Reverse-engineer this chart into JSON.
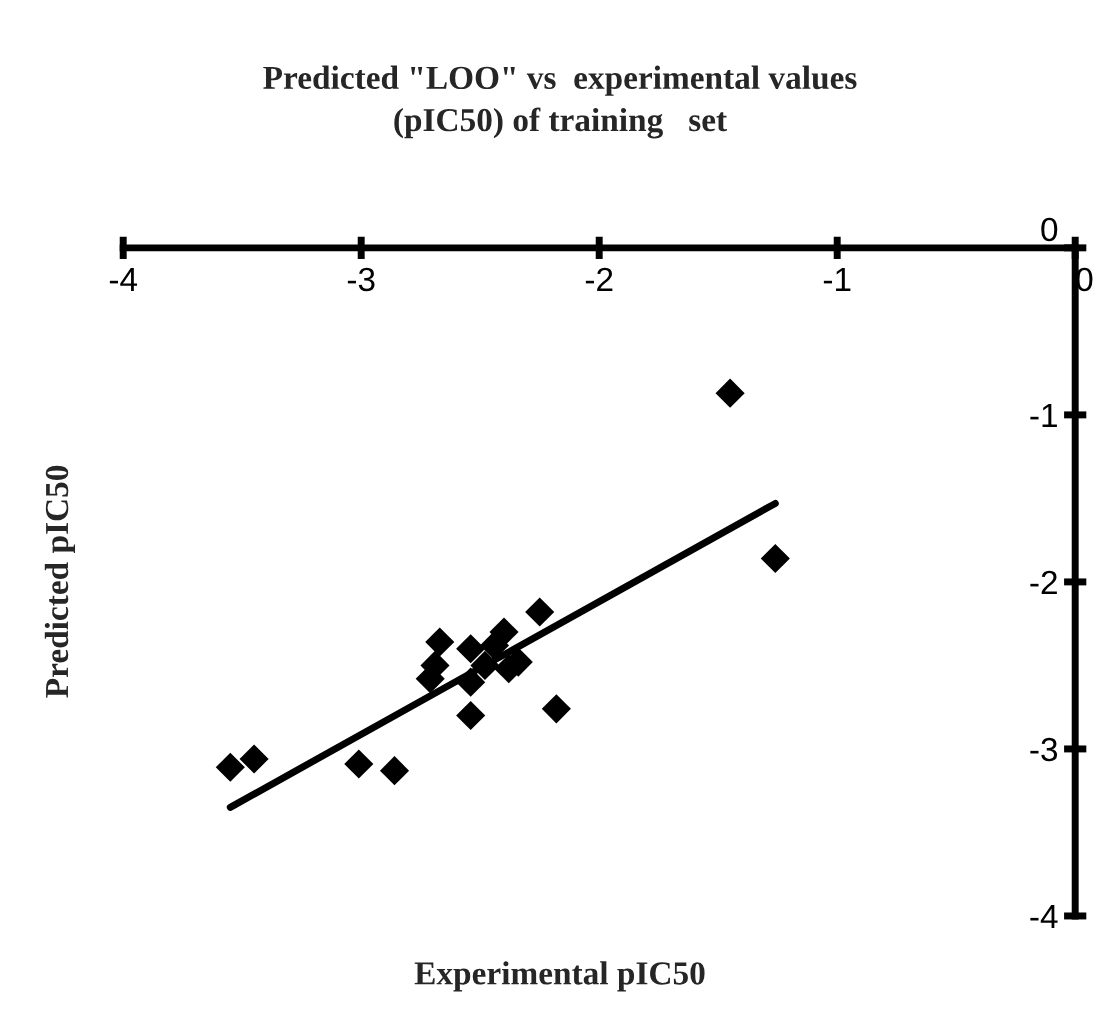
{
  "chart_data": {
    "type": "scatter",
    "title": "Predicted \"LOO\" vs  experimental values\n(pIC50) of training   set",
    "xlabel": "Experimental pIC50",
    "ylabel": "Predicted pIC50",
    "xlim": [
      -4,
      0
    ],
    "ylim": [
      -4,
      0
    ],
    "xticks": [
      -4,
      -3,
      -2,
      -1,
      0
    ],
    "yticks": [
      -4,
      -3,
      -2,
      -1,
      0
    ],
    "grid": false,
    "legend": false,
    "marker": "diamond",
    "series": [
      {
        "type": "scatter",
        "color": "#000000",
        "x": [
          -1.45,
          -1.26,
          -2.25,
          -2.67,
          -2.54,
          -2.4,
          -2.44,
          -2.34,
          -2.38,
          -2.69,
          -2.71,
          -2.54,
          -2.48,
          -2.54,
          -2.18,
          -3.55,
          -3.45,
          -3.01,
          -2.86
        ],
        "values": [
          -0.87,
          -1.86,
          -2.18,
          -2.36,
          -2.4,
          -2.3,
          -2.38,
          -2.48,
          -2.52,
          -2.5,
          -2.58,
          -2.6,
          -2.5,
          -2.8,
          -2.76,
          -3.11,
          -3.06,
          -3.09,
          -3.13
        ]
      },
      {
        "type": "line",
        "color": "#000000",
        "x": [
          -3.55,
          -1.26
        ],
        "values": [
          -3.35,
          -1.53
        ],
        "marker": "none",
        "line_style": "solid"
      }
    ]
  }
}
